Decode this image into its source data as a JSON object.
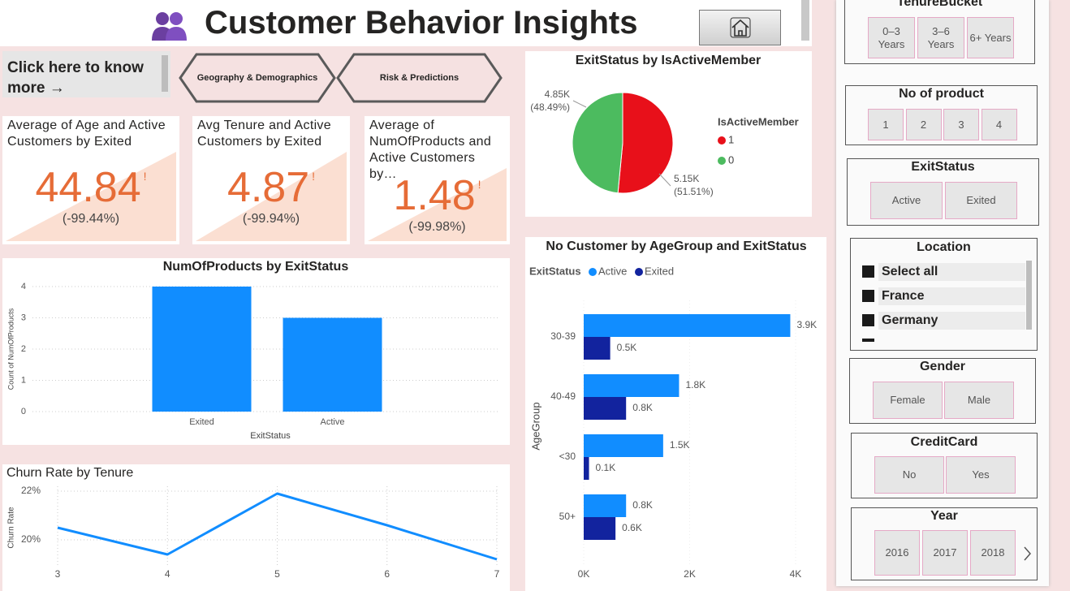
{
  "header": {
    "title": "Customer Behavior Insights"
  },
  "nav": {
    "link": "Click here to know more →",
    "buttons": [
      "Geography & Demographics",
      "Risk & Predictions"
    ]
  },
  "kpis": [
    {
      "title": "Average of Age and Active Customers by Exited",
      "value": 44.84,
      "alert": "!",
      "delta": "(-99.44%)"
    },
    {
      "title": "Avg Tenure and Active Customers by Exited",
      "value": 4.87,
      "alert": "!",
      "delta": "(-99.94%)"
    },
    {
      "title": "Average of NumOfProducts and Active Customers by…",
      "value": 1.48,
      "alert": "!",
      "delta": "(-99.98%)"
    }
  ],
  "slicers": [
    {
      "title": "TenureBucket",
      "items": [
        "0–3 Years",
        "3–6 Years",
        "6+ Years"
      ]
    },
    {
      "title": "No of product",
      "items": [
        "1",
        "2",
        "3",
        "4"
      ]
    },
    {
      "title": "ExitStatus",
      "items": [
        "Active",
        "Exited"
      ]
    },
    {
      "title": "Location",
      "items": [
        "Select all",
        "France",
        "Germany"
      ]
    },
    {
      "title": "Gender",
      "items": [
        "Female",
        "Male"
      ]
    },
    {
      "title": "CreditCard",
      "items": [
        "No",
        "Yes"
      ]
    },
    {
      "title": "Year",
      "items": [
        "2016",
        "2017",
        "2018"
      ]
    }
  ],
  "chart_data": [
    {
      "type": "pie",
      "title": "ExitStatus by IsActiveMember",
      "legend_title": "IsActiveMember",
      "categories": [
        "1",
        "0"
      ],
      "values": [
        5151,
        4849
      ],
      "value_labels": [
        "5.15K",
        "4.85K"
      ],
      "percent_labels": [
        "(51.51%)",
        "(48.49%)"
      ],
      "colors": [
        "#e8101a",
        "#4cbb5f"
      ]
    },
    {
      "type": "bar",
      "title": "NumOfProducts by ExitStatus",
      "categories": [
        "Exited",
        "Active"
      ],
      "values": [
        4,
        3
      ],
      "color": "#118dff",
      "ylim": [
        0,
        4
      ],
      "yticks": [
        0,
        1,
        2,
        3,
        4
      ],
      "ylabel": "Count of NumOfProducts",
      "xlabel": "ExitStatus",
      "grid": true
    },
    {
      "type": "line",
      "title": "Churn Rate by Tenure",
      "x": [
        3,
        4,
        5,
        6,
        7
      ],
      "values": [
        20.5,
        19.4,
        21.9,
        20.6,
        19.2
      ],
      "color": "#118dff",
      "xlim": [
        3,
        7
      ],
      "xticks": [
        3,
        4,
        5,
        6,
        7
      ],
      "ylim": [
        19,
        22.2
      ],
      "yticks": [
        {
          "value": 20,
          "label": "20%"
        },
        {
          "value": 22,
          "label": "22%"
        }
      ],
      "ylabel": "Churn Rate",
      "grid": true
    },
    {
      "type": "bar",
      "orientation": "horizontal",
      "title": "No Customer by AgeGroup and ExitStatus",
      "legend_title": "ExitStatus",
      "categories": [
        "30-39",
        "40-49",
        "<30",
        "50+"
      ],
      "ylabel": "AgeGroup",
      "series": [
        {
          "name": "Active",
          "color": "#118dff",
          "values": [
            3900,
            1800,
            1500,
            800
          ],
          "value_labels": [
            "3.9K",
            "1.8K",
            "1.5K",
            "0.8K"
          ]
        },
        {
          "name": "Exited",
          "color": "#12239e",
          "values": [
            500,
            800,
            100,
            600
          ],
          "value_labels": [
            "0.5K",
            "0.8K",
            "0.1K",
            "0.6K"
          ]
        }
      ],
      "xlim": [
        0,
        4100
      ],
      "xticks": [
        {
          "value": 0,
          "label": "0K"
        },
        {
          "value": 2000,
          "label": "2K"
        },
        {
          "value": 4000,
          "label": "4K"
        }
      ]
    }
  ]
}
